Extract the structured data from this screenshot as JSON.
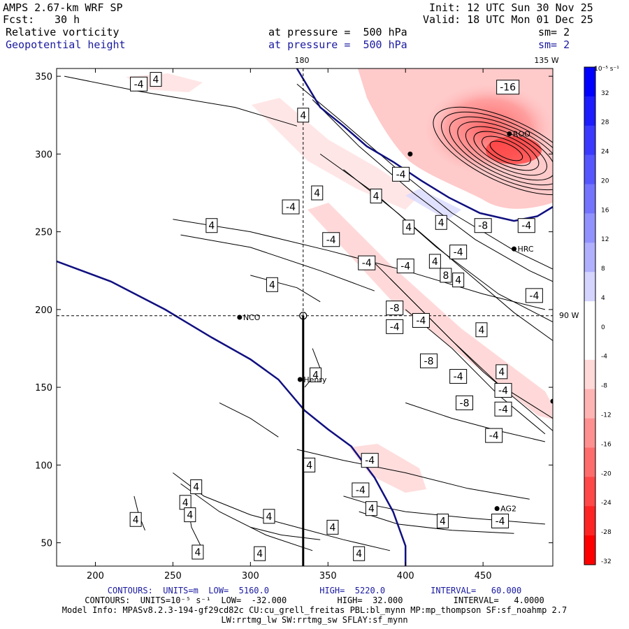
{
  "header": {
    "model": "AMPS 2.67-km WRF SP",
    "fcst_label": "Fcst:",
    "fcst_value": "30 h",
    "init": "Init: 12 UTC Sun 30 Nov 25",
    "valid": "Valid: 18 UTC Mon 01 Dec 25",
    "field1_name": "Relative vorticity",
    "field1_level": "at pressure =  500 hPa",
    "field1_sm": "sm= 2",
    "field2_name": "Geopotential height",
    "field2_level": "at pressure =  500 hPa",
    "field2_sm": "sm= 2"
  },
  "map_labels": {
    "lon_top_180": "180",
    "lon_top_135": "135 W",
    "lon_right_90": "90 W"
  },
  "stations": [
    {
      "name": "ROO",
      "x": 467,
      "y": 313
    },
    {
      "name": "HRC",
      "x": 470,
      "y": 239
    },
    {
      "name": "NCO",
      "x": 293,
      "y": 195
    },
    {
      "name": "Henry",
      "x": 332,
      "y": 155
    },
    {
      "name": "AG2",
      "x": 459,
      "y": 72
    },
    {
      "name": "",
      "x": 403,
      "y": 300
    },
    {
      "name": "",
      "x": 495,
      "y": 141
    }
  ],
  "chart_data": {
    "type": "contour",
    "xlim": [
      175,
      495
    ],
    "ylim": [
      35,
      355
    ],
    "x_ticks": [
      "200",
      "250",
      "300",
      "350",
      "400",
      "450"
    ],
    "y_ticks": [
      "50",
      "100",
      "150",
      "200",
      "250",
      "300",
      "350"
    ],
    "x_tick_values": [
      200,
      250,
      300,
      350,
      400,
      450
    ],
    "y_tick_values": [
      50,
      100,
      150,
      200,
      250,
      300,
      350
    ],
    "crosshair": {
      "x": 334,
      "y": 196
    },
    "section_line": {
      "x": 334,
      "y_from": 196,
      "y_to": 35
    },
    "height_contours_5160": [
      [
        [
          175,
          231
        ],
        [
          210,
          218
        ],
        [
          245,
          200
        ],
        [
          275,
          182
        ],
        [
          300,
          168
        ],
        [
          318,
          155
        ],
        [
          335,
          135
        ],
        [
          350,
          123
        ],
        [
          365,
          112
        ],
        [
          380,
          92
        ],
        [
          392,
          70
        ],
        [
          400,
          48
        ],
        [
          400,
          35
        ]
      ],
      [
        [
          330,
          355
        ],
        [
          345,
          330
        ],
        [
          360,
          318
        ],
        [
          375,
          305
        ],
        [
          392,
          295
        ],
        [
          410,
          283
        ],
        [
          428,
          272
        ],
        [
          448,
          262
        ],
        [
          470,
          257
        ],
        [
          485,
          260
        ],
        [
          495,
          266
        ]
      ]
    ],
    "vorticity_contour_labels": [
      {
        "text": "-4",
        "x": 228,
        "y": 345
      },
      {
        "text": "4",
        "x": 239,
        "y": 348
      },
      {
        "text": "4",
        "x": 334,
        "y": 325
      },
      {
        "text": "-16",
        "x": 466,
        "y": 343
      },
      {
        "text": "4",
        "x": 343,
        "y": 275
      },
      {
        "text": "-4",
        "x": 326,
        "y": 266
      },
      {
        "text": "-4",
        "x": 397,
        "y": 287
      },
      {
        "text": "4",
        "x": 381,
        "y": 273
      },
      {
        "text": "4",
        "x": 275,
        "y": 254
      },
      {
        "text": "-4",
        "x": 352,
        "y": 245
      },
      {
        "text": "4",
        "x": 402,
        "y": 253
      },
      {
        "text": "4",
        "x": 423,
        "y": 256
      },
      {
        "text": "-8",
        "x": 450,
        "y": 254
      },
      {
        "text": "-4",
        "x": 478,
        "y": 254
      },
      {
        "text": "-4",
        "x": 375,
        "y": 230
      },
      {
        "text": "-4",
        "x": 400,
        "y": 228
      },
      {
        "text": "4",
        "x": 419,
        "y": 231
      },
      {
        "text": "-4",
        "x": 434,
        "y": 237
      },
      {
        "text": "8",
        "x": 426,
        "y": 222
      },
      {
        "text": "4",
        "x": 434,
        "y": 219
      },
      {
        "text": "4",
        "x": 314,
        "y": 216
      },
      {
        "text": "-8",
        "x": 393,
        "y": 201
      },
      {
        "text": "-4",
        "x": 483,
        "y": 209
      },
      {
        "text": "-4",
        "x": 393,
        "y": 189
      },
      {
        "text": "-4",
        "x": 410,
        "y": 193
      },
      {
        "text": "4",
        "x": 449,
        "y": 187
      },
      {
        "text": "-8",
        "x": 415,
        "y": 167
      },
      {
        "text": "-4",
        "x": 434,
        "y": 157
      },
      {
        "text": "4",
        "x": 342,
        "y": 158
      },
      {
        "text": "4",
        "x": 462,
        "y": 160
      },
      {
        "text": "-4",
        "x": 463,
        "y": 148
      },
      {
        "text": "-8",
        "x": 438,
        "y": 140
      },
      {
        "text": "-4",
        "x": 463,
        "y": 136
      },
      {
        "text": "-4",
        "x": 457,
        "y": 119
      },
      {
        "text": "4",
        "x": 338,
        "y": 100
      },
      {
        "text": "-4",
        "x": 377,
        "y": 103
      },
      {
        "text": "-4",
        "x": 371,
        "y": 84
      },
      {
        "text": "4",
        "x": 265,
        "y": 86
      },
      {
        "text": "4",
        "x": 258,
        "y": 76
      },
      {
        "text": "4",
        "x": 226,
        "y": 65
      },
      {
        "text": "4",
        "x": 261,
        "y": 68
      },
      {
        "text": "4",
        "x": 312,
        "y": 67
      },
      {
        "text": "4",
        "x": 378,
        "y": 72
      },
      {
        "text": "4",
        "x": 424,
        "y": 64
      },
      {
        "text": "-4",
        "x": 461,
        "y": 64
      },
      {
        "text": "4",
        "x": 353,
        "y": 60
      },
      {
        "text": "4",
        "x": 266,
        "y": 44
      },
      {
        "text": "4",
        "x": 306,
        "y": 43
      },
      {
        "text": "4",
        "x": 370,
        "y": 43
      }
    ],
    "colorbar": {
      "unit_label": "10⁻⁵ s⁻¹",
      "ticks": [
        "32",
        "28",
        "24",
        "20",
        "16",
        "12",
        "8",
        "4",
        "0",
        "-4",
        "-8",
        "-12",
        "-16",
        "-20",
        "-24",
        "-28",
        "-32"
      ],
      "colors": [
        "#0000ff",
        "#1c1cff",
        "#3a3aff",
        "#5656ff",
        "#7474ff",
        "#9292ff",
        "#b0b0ff",
        "#d4d4ff",
        "#ffffff",
        "#ffffff",
        "#ffd8d8",
        "#ffb4b4",
        "#ff9090",
        "#ff6c6c",
        "#ff4848",
        "#ff2424",
        "#ff0000"
      ]
    },
    "colors": {
      "height_contour": "#101080",
      "vorticity_contour": "#000000"
    }
  },
  "footer": {
    "line1": "CONTOURS:  UNITS=m  LOW=  5160.0          HIGH=  5220.0         INTERVAL=   60.000",
    "line2": "CONTOURS:  UNITS=10⁻⁵ s⁻¹  LOW=  -32.000          HIGH=  32.000          INTERVAL=   4.0000",
    "line3": "Model Info: MPASv8.2.3-194-gf29cd82c CU:cu_grell_freitas PBL:bl_mynn MP:mp_thompson SF:sf_noahmp 2.7",
    "line4": "LW:rrtmg_lw SW:rrtmg_sw SFLAY:sf_mynn"
  }
}
